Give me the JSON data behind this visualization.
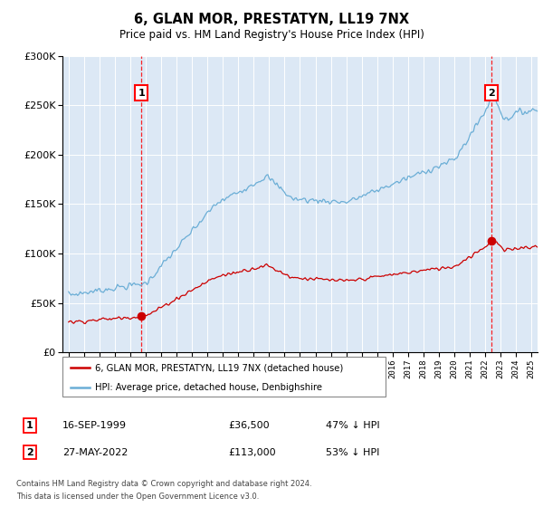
{
  "title": "6, GLAN MOR, PRESTATYN, LL19 7NX",
  "subtitle": "Price paid vs. HM Land Registry's House Price Index (HPI)",
  "hpi_color": "#6baed6",
  "price_color": "#cc0000",
  "annotation1_date": 1999.72,
  "annotation1_value": 36500,
  "annotation2_date": 2022.41,
  "annotation2_value": 113000,
  "sale1_date_label": "16-SEP-1999",
  "sale1_price_label": "£36,500",
  "sale1_hpi_label": "47% ↓ HPI",
  "sale2_date_label": "27-MAY-2022",
  "sale2_price_label": "£113,000",
  "sale2_hpi_label": "53% ↓ HPI",
  "legend_house_label": "6, GLAN MOR, PRESTATYN, LL19 7NX (detached house)",
  "legend_hpi_label": "HPI: Average price, detached house, Denbighshire",
  "footer_line1": "Contains HM Land Registry data © Crown copyright and database right 2024.",
  "footer_line2": "This data is licensed under the Open Government Licence v3.0.",
  "ylim_max": 300000,
  "xmin": 1994.6,
  "xmax": 2025.4,
  "plot_bg": "#dce8f5",
  "fig_bg": "white"
}
